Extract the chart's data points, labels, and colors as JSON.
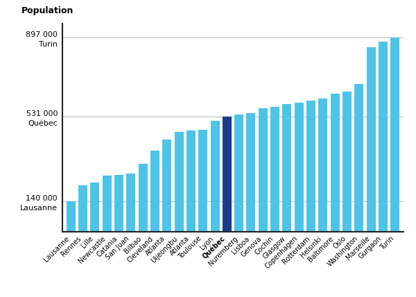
{
  "categories": [
    "Lausanne",
    "Rennes",
    "Lille",
    "Newcastle",
    "Catania",
    "San Juan",
    "Bilbao",
    "Cleveland",
    "Atlanta",
    "Uijeongbu",
    "Atlanta",
    "Toulouse",
    "Lyon",
    "Québec",
    "Nuremberg",
    "Lisboa",
    "Genova",
    "Cochin",
    "Glasgow",
    "Copenhagen",
    "Rotterdam",
    "Helsinki",
    "Baltimore",
    "Oslo",
    "Washington",
    "Marseille",
    "Gurgaon",
    "Turin"
  ],
  "values": [
    140000,
    215000,
    228000,
    258000,
    262000,
    268000,
    315000,
    375000,
    425000,
    462000,
    466000,
    470000,
    513000,
    531000,
    542000,
    548000,
    570000,
    577000,
    590000,
    597000,
    605000,
    615000,
    637000,
    647000,
    682000,
    852000,
    877000,
    897000
  ],
  "highlight_index": 13,
  "bar_color": "#4DC3E8",
  "highlight_color": "#1B3A8C",
  "yticks": [
    140000,
    531000,
    897000
  ],
  "ytick_labels": [
    "140 000\nLausanne",
    "531 000\nQuébec",
    "897 000\nTurin"
  ],
  "top_label": "Population",
  "background_color": "#ffffff",
  "grid_color": "#c0c0c0",
  "ylim_max": 960000
}
